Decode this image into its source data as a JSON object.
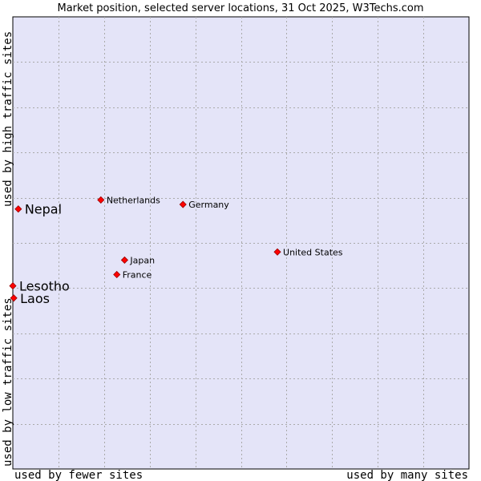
{
  "chart_data": {
    "type": "scatter",
    "title": "Market position, selected server locations, 31 Oct 2025, W3Techs.com",
    "xlabel_left": "used by fewer sites",
    "xlabel_right": "used by many sites",
    "ylabel_top": "used by high traffic sites",
    "ylabel_bottom": "used by low traffic sites",
    "xlim": [
      0,
      10
    ],
    "ylim": [
      0,
      10
    ],
    "grid": true,
    "colors": {
      "plot_bg": "#e4e4f8",
      "grid": "#aaaaaa",
      "point": "#ff0000",
      "point_edge": "#990000"
    },
    "points": [
      {
        "label": "Nepal",
        "x": 0.12,
        "y": 5.75,
        "highlight": true
      },
      {
        "label": "Lesotho",
        "x": 0.0,
        "y": 4.05,
        "highlight": true
      },
      {
        "label": "Laos",
        "x": 0.02,
        "y": 3.78,
        "highlight": true
      },
      {
        "label": "Netherlands",
        "x": 1.93,
        "y": 5.95,
        "highlight": false
      },
      {
        "label": "Germany",
        "x": 3.73,
        "y": 5.85,
        "highlight": false
      },
      {
        "label": "United States",
        "x": 5.8,
        "y": 4.8,
        "highlight": false
      },
      {
        "label": "Japan",
        "x": 2.45,
        "y": 4.62,
        "highlight": false
      },
      {
        "label": "France",
        "x": 2.28,
        "y": 4.3,
        "highlight": false
      }
    ]
  }
}
